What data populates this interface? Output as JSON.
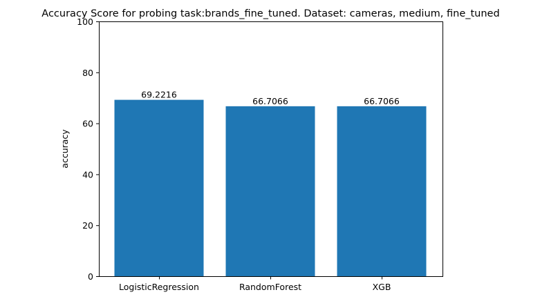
{
  "chart_data": {
    "type": "bar",
    "title": "Accuracy Score for probing task:brands_fine_tuned. Dataset: cameras, medium, fine_tuned",
    "xlabel": "",
    "ylabel": "accuracy",
    "categories": [
      "LogisticRegression",
      "RandomForest",
      "XGB"
    ],
    "values": [
      69.2216,
      66.7066,
      66.7066
    ],
    "value_labels": [
      "69.2216",
      "66.7066",
      "66.7066"
    ],
    "ylim": [
      0,
      100
    ],
    "yticks": [
      0,
      20,
      40,
      60,
      80,
      100
    ],
    "ytick_labels": [
      "0",
      "20",
      "40",
      "60",
      "80",
      "100"
    ],
    "bar_color": "#1f77b4",
    "grid": false,
    "legend": false
  }
}
